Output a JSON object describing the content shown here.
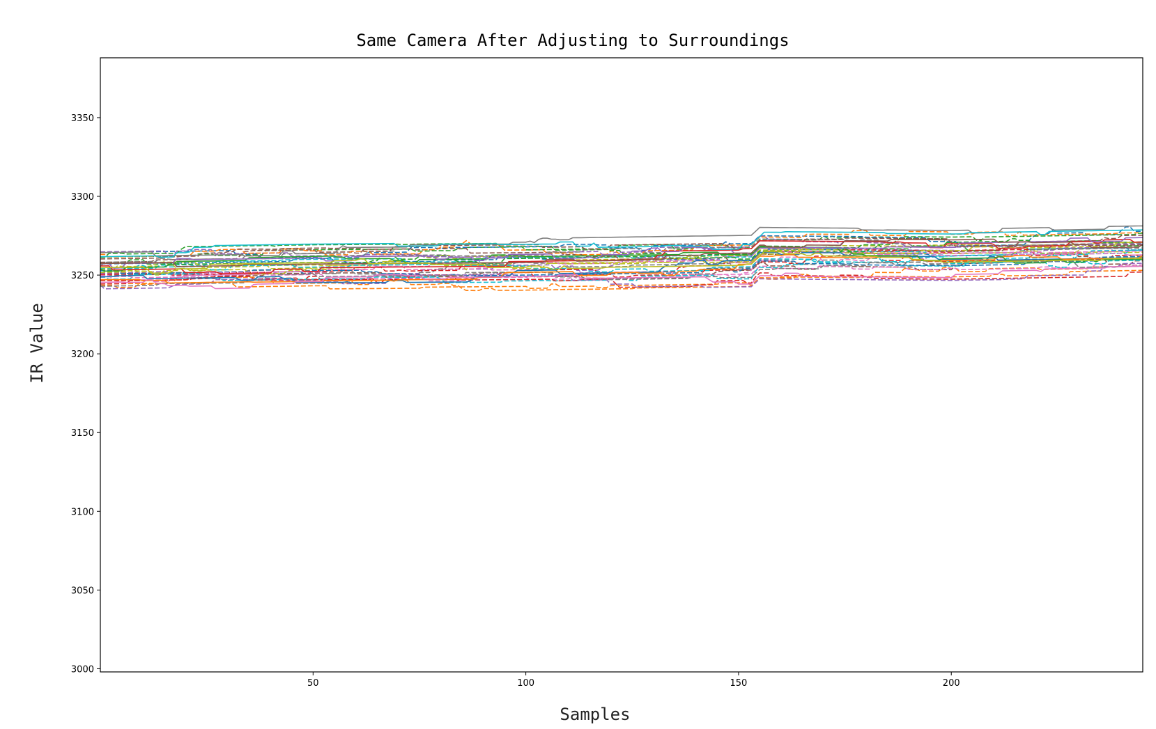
{
  "chart_data": {
    "type": "line",
    "title": "Same Camera After Adjusting to Surroundings",
    "xlabel": "Samples",
    "ylabel": "IR Value",
    "xlim": [
      0,
      245
    ],
    "ylim": [
      2998,
      3388
    ],
    "xticks": [
      50,
      100,
      150,
      200
    ],
    "yticks": [
      3000,
      3050,
      3100,
      3150,
      3200,
      3250,
      3300,
      3350
    ],
    "grid": false,
    "legend": "none",
    "series_count": 40,
    "dashed_fraction": 0.75,
    "center_trend": [
      {
        "x": 0,
        "y": 3252
      },
      {
        "x": 50,
        "y": 3254
      },
      {
        "x": 100,
        "y": 3255
      },
      {
        "x": 153,
        "y": 3257
      },
      {
        "x": 155,
        "y": 3262
      },
      {
        "x": 200,
        "y": 3261
      },
      {
        "x": 245,
        "y": 3263
      }
    ],
    "spread": [
      -10,
      13
    ],
    "colors": [
      "#1f77b4",
      "#ff7f0e",
      "#2ca02c",
      "#d62728",
      "#9467bd",
      "#8c564b",
      "#e377c2",
      "#7f7f7f",
      "#bcbd22",
      "#17becf"
    ]
  }
}
